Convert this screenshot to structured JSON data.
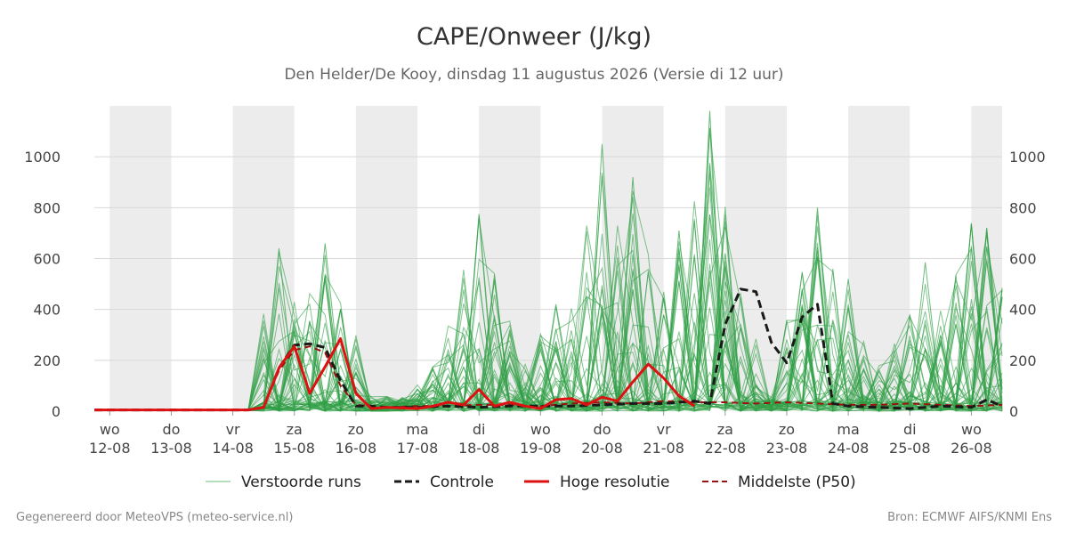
{
  "header": {
    "title": "CAPE/Onweer (J/kg)",
    "subtitle": "Den Helder/De Kooy, dinsdag 11 augustus 2026 (Versie di 12 uur)"
  },
  "footer": {
    "left": "Gegenereerd door MeteoVPS (meteo-service.nl)",
    "right": "Bron: ECMWF AIFS/KNMI Ens"
  },
  "colors": {
    "ensemble": "#2e9e44",
    "control": "#1a1a1a",
    "hires": "#dd1111",
    "median": "#9b1010",
    "weekend_band": "#ececec",
    "grid": "#d8d8d8"
  },
  "chart_data": {
    "type": "line",
    "title": "CAPE/Onweer (J/kg)",
    "subtitle": "Den Helder/De Kooy, dinsdag 11 augustus 2026 (Versie di 12 uur)",
    "x_unit": "days since wo 12-08 (12-08 = 0)",
    "xlim": [
      -0.25,
      14.5
    ],
    "ylim": [
      0,
      1200
    ],
    "yticks": [
      0,
      200,
      400,
      600,
      800,
      1000
    ],
    "grid": true,
    "legend_position": "bottom",
    "xtick_days": [
      "wo",
      "do",
      "vr",
      "za",
      "zo",
      "ma",
      "di",
      "wo",
      "do",
      "vr",
      "za",
      "zo",
      "ma",
      "di",
      "wo"
    ],
    "xtick_dates": [
      "12-08",
      "13-08",
      "14-08",
      "15-08",
      "16-08",
      "17-08",
      "18-08",
      "19-08",
      "20-08",
      "21-08",
      "22-08",
      "23-08",
      "24-08",
      "25-08",
      "26-08"
    ],
    "shaded_day_ranges": [
      [
        0,
        1
      ],
      [
        2,
        3
      ],
      [
        4,
        5
      ],
      [
        6,
        7
      ],
      [
        8,
        9
      ],
      [
        10,
        11
      ],
      [
        12,
        13
      ],
      [
        14,
        14.5
      ]
    ],
    "series": [
      {
        "name": "Verstoorde runs",
        "style": "ensemble",
        "member_count": 50,
        "peaks": [
          [
            2.75,
            640
          ],
          [
            3.5,
            660
          ],
          [
            5.5,
            240
          ],
          [
            6.0,
            775
          ],
          [
            7.25,
            420
          ],
          [
            8.0,
            1050
          ],
          [
            8.5,
            920
          ],
          [
            9.25,
            710
          ],
          [
            9.75,
            1180
          ],
          [
            10.0,
            620
          ],
          [
            11.5,
            800
          ],
          [
            12.0,
            520
          ],
          [
            13.25,
            585
          ],
          [
            14.0,
            740
          ],
          [
            14.25,
            720
          ]
        ]
      },
      {
        "name": "Controle",
        "style": "dashed",
        "x": [
          -0.25,
          0,
          0.5,
          1,
          1.5,
          2,
          2.25,
          2.5,
          2.75,
          3.0,
          3.25,
          3.5,
          3.75,
          4.0,
          4.25,
          4.5,
          5,
          5.5,
          6,
          6.5,
          7,
          7.5,
          8,
          8.5,
          9,
          9.5,
          9.75,
          10.0,
          10.25,
          10.5,
          10.75,
          11.0,
          11.25,
          11.5,
          11.75,
          12,
          12.5,
          13,
          13.5,
          14,
          14.25,
          14.5
        ],
        "y": [
          5,
          5,
          5,
          5,
          5,
          5,
          5,
          15,
          170,
          260,
          265,
          250,
          120,
          20,
          20,
          15,
          15,
          20,
          15,
          20,
          20,
          20,
          25,
          30,
          30,
          40,
          30,
          340,
          480,
          470,
          270,
          190,
          370,
          420,
          30,
          20,
          15,
          10,
          20,
          15,
          45,
          20
        ]
      },
      {
        "name": "Hoge resolutie",
        "style": "solid-thick",
        "x": [
          -0.25,
          0,
          0.5,
          1,
          1.5,
          2,
          2.25,
          2.5,
          2.75,
          3.0,
          3.25,
          3.5,
          3.75,
          4.0,
          4.25,
          4.5,
          5,
          5.25,
          5.5,
          5.75,
          6,
          6.25,
          6.5,
          6.75,
          7.0,
          7.25,
          7.5,
          7.75,
          8.0,
          8.25,
          8.5,
          8.75,
          9.0,
          9.25,
          9.5
        ],
        "y": [
          5,
          5,
          5,
          5,
          5,
          5,
          5,
          15,
          170,
          255,
          70,
          175,
          285,
          70,
          10,
          15,
          10,
          20,
          35,
          25,
          85,
          20,
          35,
          20,
          10,
          45,
          50,
          25,
          55,
          40,
          115,
          185,
          130,
          60,
          20
        ]
      },
      {
        "name": "Middelste (P50)",
        "style": "dashed-thin",
        "x": [
          -0.25,
          0.5,
          1.5,
          2.25,
          2.5,
          2.75,
          3.0,
          3.25,
          3.5,
          3.75,
          4.0,
          4.5,
          5.0,
          5.5,
          6.0,
          6.5,
          7.0,
          7.5,
          8.0,
          8.5,
          9.0,
          9.5,
          10.0,
          10.5,
          11.0,
          11.5,
          12.0,
          12.5,
          13.0,
          13.5,
          14.0,
          14.5
        ],
        "y": [
          5,
          5,
          5,
          5,
          15,
          160,
          240,
          255,
          230,
          100,
          25,
          15,
          20,
          20,
          25,
          25,
          20,
          30,
          35,
          30,
          40,
          35,
          35,
          30,
          35,
          30,
          25,
          25,
          30,
          25,
          20,
          25
        ]
      }
    ]
  }
}
